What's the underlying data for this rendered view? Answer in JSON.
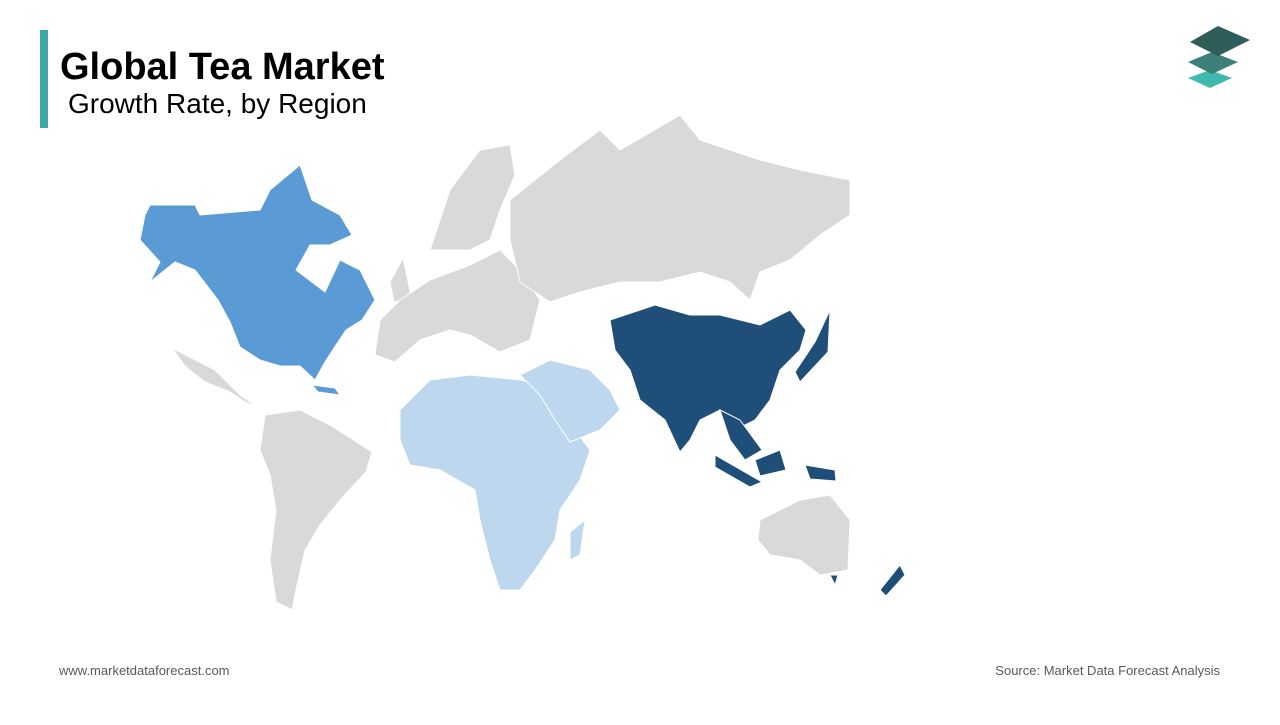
{
  "header": {
    "title": "Global Tea Market",
    "subtitle": "Growth Rate, by Region"
  },
  "footer": {
    "website": "www.marketdataforecast.com",
    "source": "Source: Market Data Forecast Analysis"
  }
}
